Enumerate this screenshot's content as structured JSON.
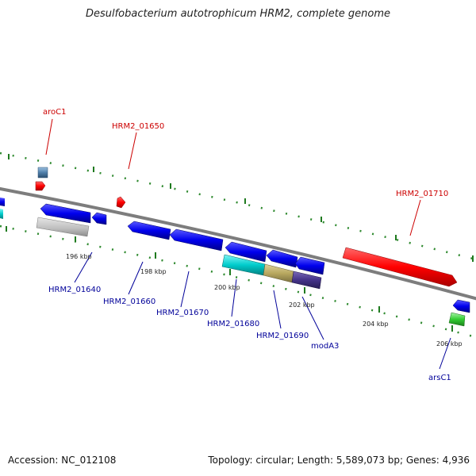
{
  "title": "Desulfobacterium autotrophicum HRM2, complete genome",
  "footer": {
    "accession": "Accession: NC_012108",
    "summary": "Topology: circular; Length: 5,589,073 bp; Genes: 4,936"
  },
  "colors": {
    "backbone": "#8a8a8a",
    "tick": "#2f8a2f",
    "forward_label": "#cc0000",
    "reverse_label": "#000099"
  },
  "scale_labels": [
    "196 kbp",
    "198 kbp",
    "200 kbp",
    "202 kbp",
    "204 kbp",
    "206 kbp"
  ],
  "gene_labels": {
    "forward": [
      "aroC1",
      "HRM2_01650",
      "HRM2_01710"
    ],
    "reverse": [
      "HRM2_01640",
      "HRM2_01660",
      "HRM2_01670",
      "HRM2_01680",
      "HRM2_01690",
      "modA3",
      "arsC1"
    ]
  },
  "features": [
    {
      "name": "aroC1",
      "strand": "+",
      "color": "#ff0000"
    },
    {
      "name": "HRM2_01650",
      "strand": "+",
      "color": "#ff0000"
    },
    {
      "name": "HRM2_01710",
      "strand": "+",
      "color": "#ff0000"
    },
    {
      "name": "forward-feature-blue-small",
      "strand": "+",
      "color": "#4f7faa"
    },
    {
      "name": "HRM2_01640",
      "strand": "-",
      "color": "#0000ee"
    },
    {
      "name": "HRM2_01660",
      "strand": "-",
      "color": "#0000ee"
    },
    {
      "name": "HRM2_01670",
      "strand": "-",
      "color": "#0000ee"
    },
    {
      "name": "HRM2_01680",
      "strand": "-",
      "color": "#00cccc"
    },
    {
      "name": "HRM2_01690",
      "strand": "-",
      "color": "#b8a860"
    },
    {
      "name": "modA3",
      "strand": "-",
      "color": "#443388"
    },
    {
      "name": "arsC1",
      "strand": "-",
      "color": "#33cc33"
    }
  ]
}
